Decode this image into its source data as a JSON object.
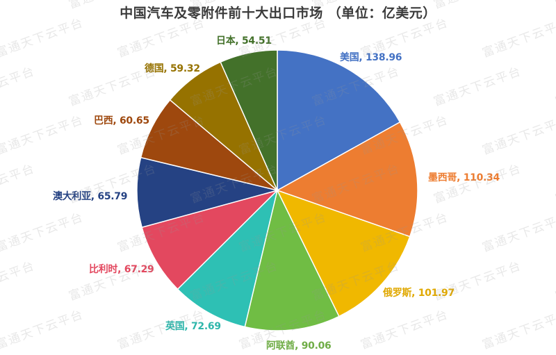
{
  "title": "中国汽车及零附件前十大出口市场 （单位：亿美元）",
  "watermark_text": "富通天下云平台",
  "chart_data": {
    "type": "pie",
    "title": "中国汽车及零附件前十大出口市场 （单位：亿美元）",
    "unit": "亿美元",
    "start_angle": "12 o'clock, clockwise",
    "categories": [
      "美国",
      "墨西哥",
      "俄罗斯",
      "阿联酋",
      "英国",
      "比利时",
      "澳大利亚",
      "巴西",
      "德国",
      "日本"
    ],
    "values": [
      138.96,
      110.34,
      101.97,
      90.06,
      72.69,
      67.29,
      65.79,
      60.65,
      59.32,
      54.51
    ],
    "colors": [
      "#4472c4",
      "#ed7d31",
      "#f0b800",
      "#70bd44",
      "#2ec0b4",
      "#e3485f",
      "#254283",
      "#9e480e",
      "#967200",
      "#43712a"
    ],
    "labels": [
      {
        "text": "美国, 138.96",
        "color": "#4472c4"
      },
      {
        "text": "墨西哥, 110.34",
        "color": "#ed7d31"
      },
      {
        "text": "俄罗斯, 101.97",
        "color": "#e0a800"
      },
      {
        "text": "阿联酋, 90.06",
        "color": "#70ad47"
      },
      {
        "text": "英国, 72.69",
        "color": "#2eb6ab"
      },
      {
        "text": "比利时, 67.29",
        "color": "#e3485f"
      },
      {
        "text": "澳大利亚, 65.79",
        "color": "#254283"
      },
      {
        "text": "巴西, 60.65",
        "color": "#9e480e"
      },
      {
        "text": "德国, 59.32",
        "color": "#967200"
      },
      {
        "text": "日本, 54.51",
        "color": "#43712a"
      }
    ],
    "legend": "none (data labels outside slices)"
  }
}
